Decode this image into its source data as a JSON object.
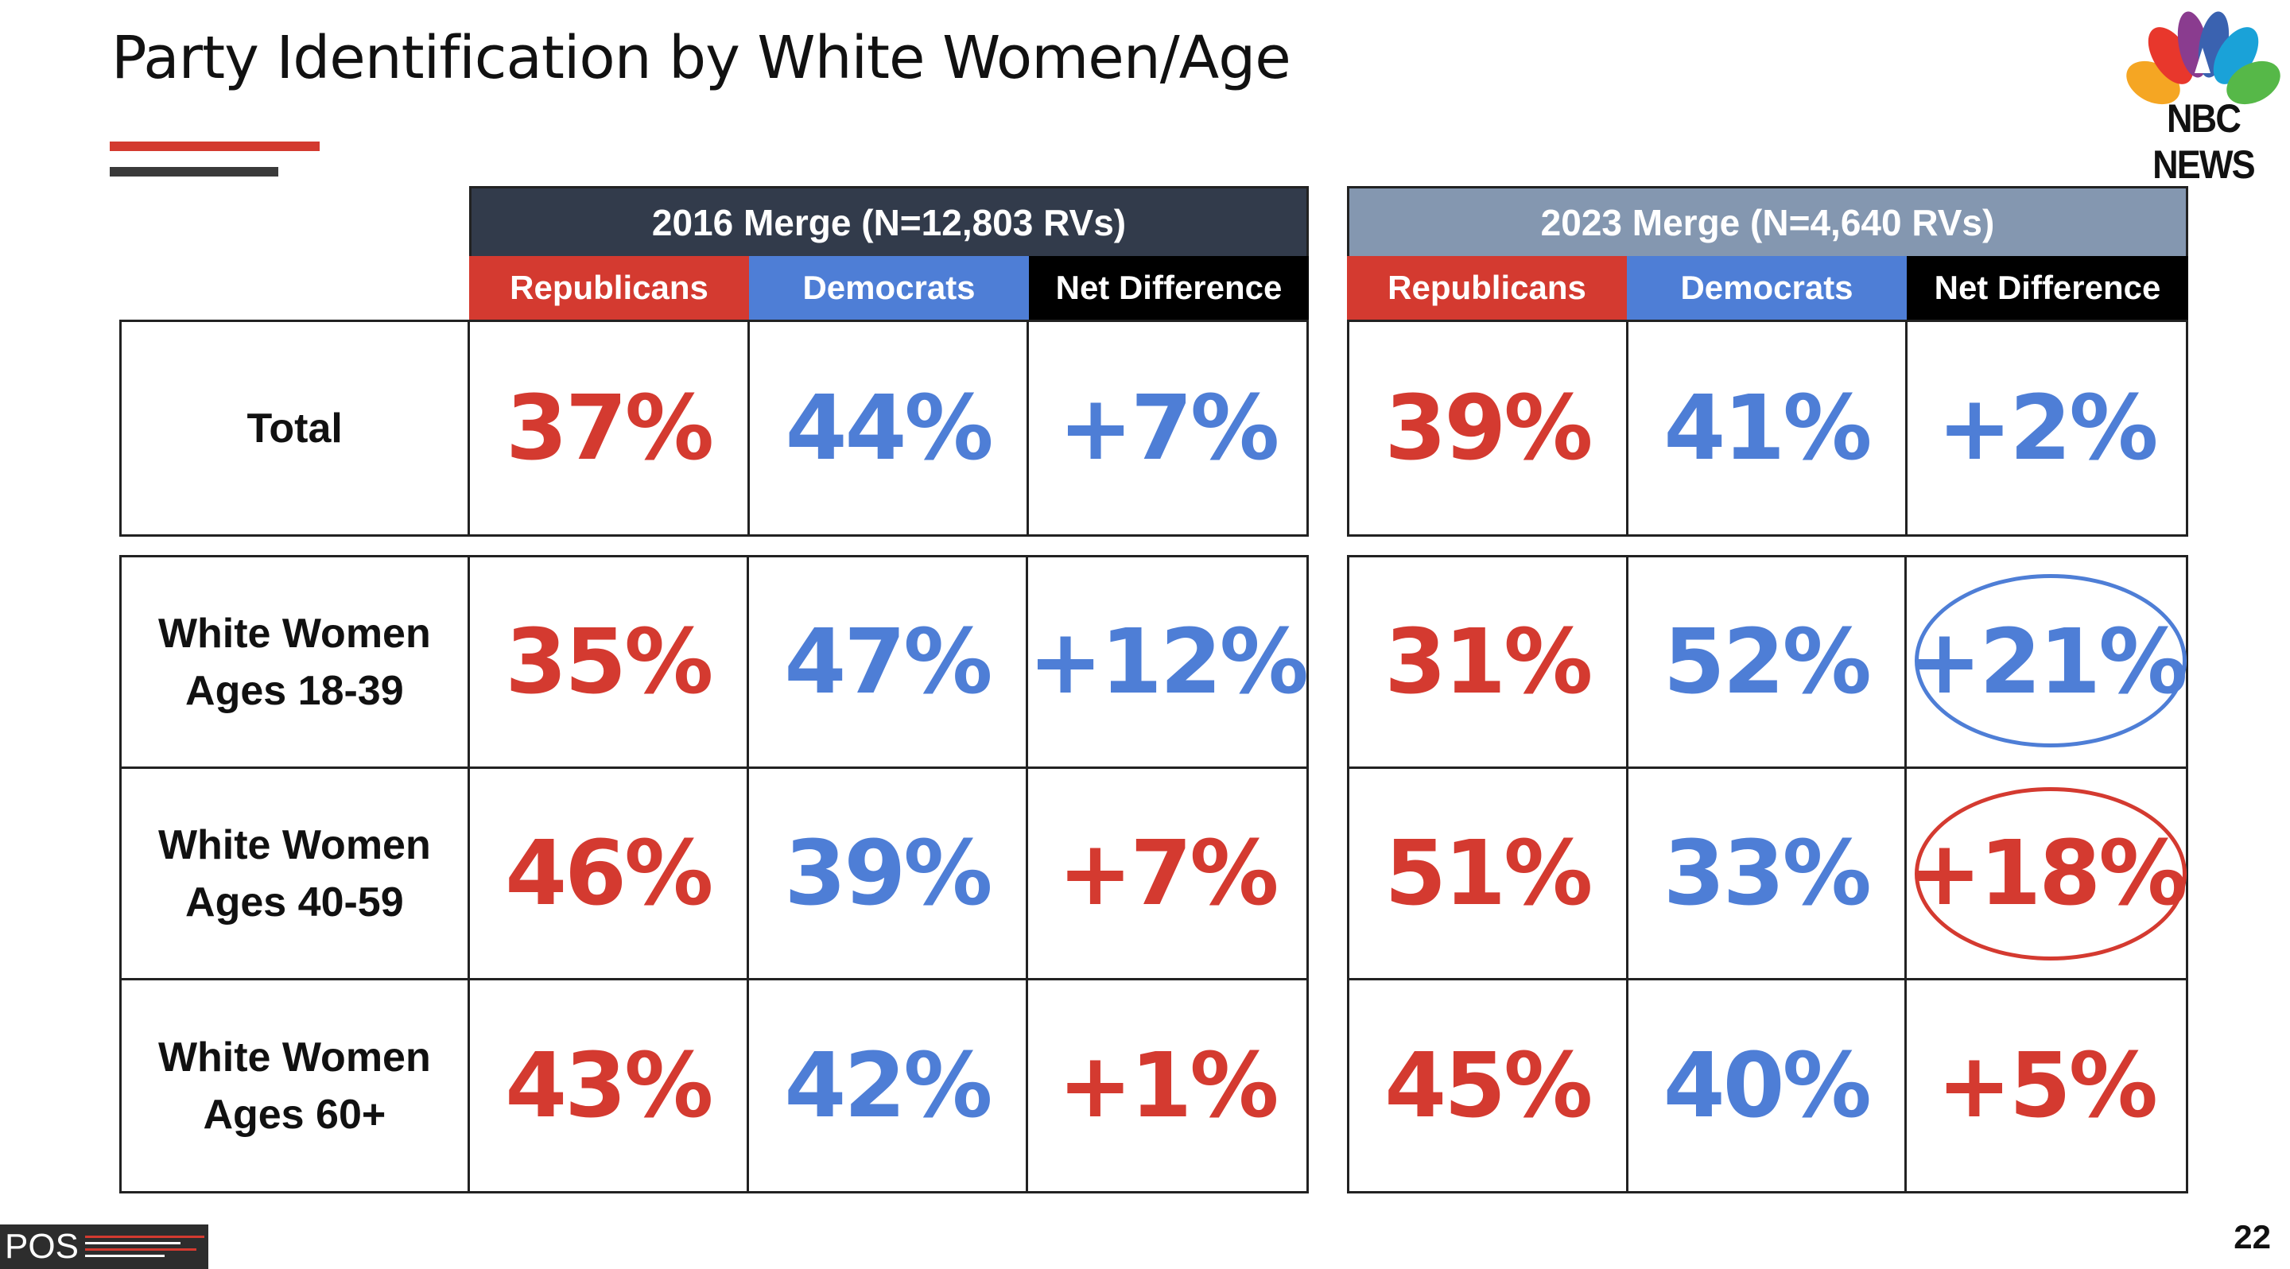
{
  "title": "Party Identification by White Women/Age",
  "logo": {
    "text": "NBC NEWS"
  },
  "footer": {
    "brand": "POS",
    "page_number": "22"
  },
  "colors": {
    "republicans": "#d43a30",
    "democrats": "#4e7ed6",
    "net": "#000000",
    "header_2016": "#323b4b",
    "header_2023": "#8497b0"
  },
  "chart_data": {
    "type": "table",
    "panels": [
      {
        "header": "2016 Merge (N=12,803 RVs)",
        "columns": [
          "Republicans",
          "Democrats",
          "Net Difference"
        ],
        "rows": [
          {
            "label": [
              "Total"
            ],
            "republicans": "37%",
            "democrats": "44%",
            "net": "+7%",
            "net_party": "democrats"
          },
          {
            "label": [
              "White Women",
              "Ages 18-39"
            ],
            "republicans": "35%",
            "democrats": "47%",
            "net": "+12%",
            "net_party": "democrats"
          },
          {
            "label": [
              "White Women",
              "Ages 40-59"
            ],
            "republicans": "46%",
            "democrats": "39%",
            "net": "+7%",
            "net_party": "republicans"
          },
          {
            "label": [
              "White Women",
              "Ages 60+"
            ],
            "republicans": "43%",
            "democrats": "42%",
            "net": "+1%",
            "net_party": "republicans"
          }
        ]
      },
      {
        "header": "2023 Merge (N=4,640 RVs)",
        "columns": [
          "Republicans",
          "Democrats",
          "Net Difference"
        ],
        "rows": [
          {
            "republicans": "39%",
            "democrats": "41%",
            "net": "+2%",
            "net_party": "democrats"
          },
          {
            "republicans": "31%",
            "democrats": "52%",
            "net": "+21%",
            "net_party": "democrats",
            "circled": true
          },
          {
            "republicans": "51%",
            "democrats": "33%",
            "net": "+18%",
            "net_party": "republicans",
            "circled": true
          },
          {
            "republicans": "45%",
            "democrats": "40%",
            "net": "+5%",
            "net_party": "republicans"
          }
        ]
      }
    ]
  }
}
